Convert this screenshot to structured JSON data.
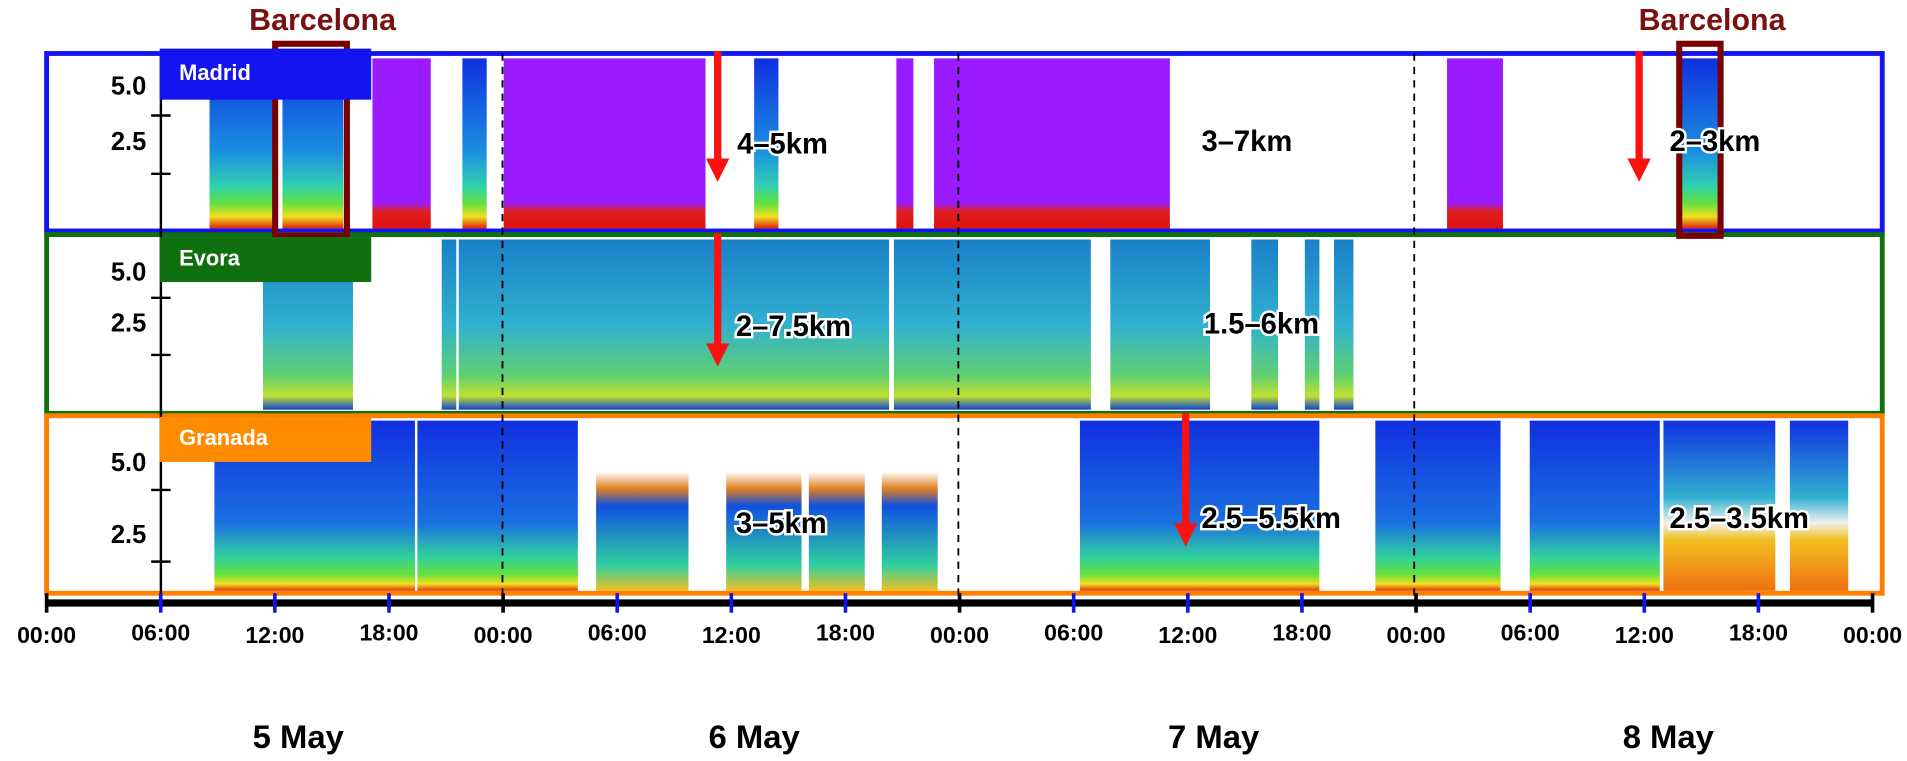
{
  "header": {
    "labels": [
      "Barcelona",
      "Barcelona"
    ]
  },
  "panels": [
    {
      "name": "Madrid",
      "yticks": [
        "5.0",
        "2.5"
      ],
      "annotations": [
        "4–5km",
        "3–7km",
        "2–3km"
      ]
    },
    {
      "name": "Evora",
      "yticks": [
        "5.0",
        "2.5"
      ],
      "annotations": [
        "2–7.5km",
        "1.5–6km"
      ]
    },
    {
      "name": "Granada",
      "yticks": [
        "5.0",
        "2.5"
      ],
      "annotations": [
        "3–5km",
        "2.5–5.5km",
        "2.5–3.5km"
      ]
    }
  ],
  "time_axis": {
    "ticks": [
      "00:00",
      "06:00",
      "12:00",
      "18:00",
      "00:00",
      "06:00",
      "12:00",
      "18:00",
      "00:00",
      "06:00",
      "12:00",
      "18:00",
      "00:00",
      "06:00",
      "12:00",
      "18:00",
      "00:00"
    ]
  },
  "days": [
    "5 May",
    "6 May",
    "7 May",
    "8 May"
  ]
}
